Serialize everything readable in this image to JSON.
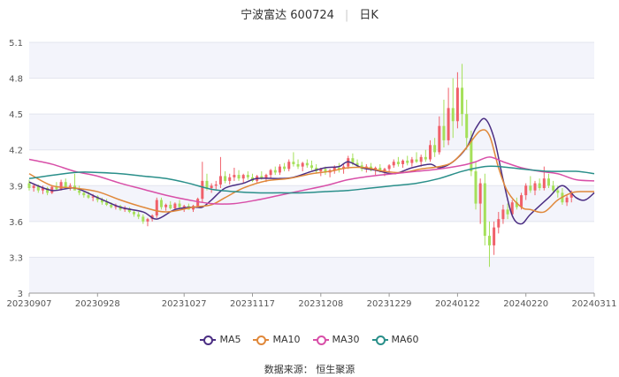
{
  "header": {
    "stock": "宁波富达 600724",
    "period": "日K"
  },
  "source_label": "数据来源： 恒生聚源",
  "chart_data": {
    "type": "candlestick",
    "ylim": [
      3.0,
      5.1
    ],
    "y_ticks": [
      "5.1",
      "4.8",
      "4.5",
      "4.2",
      "3.9",
      "3.6",
      "3.3",
      "3"
    ],
    "y_tick_values": [
      5.1,
      4.8,
      4.5,
      4.2,
      3.9,
      3.6,
      3.3,
      3.0
    ],
    "x_ticks": [
      "20230907",
      "20230928",
      "20231027",
      "20231117",
      "20231208",
      "20231229",
      "20240122",
      "20240220",
      "20240311"
    ],
    "x_tick_index": [
      0,
      15,
      34,
      49,
      64,
      79,
      94,
      109,
      124
    ],
    "n_days": 125,
    "colors": {
      "up": "#f0606a",
      "down": "#a5e05a"
    },
    "legend": [
      {
        "name": "MA5",
        "color": "#4b2e83"
      },
      {
        "name": "MA10",
        "color": "#e0883a"
      },
      {
        "name": "MA30",
        "color": "#d84fa8"
      },
      {
        "name": "MA60",
        "color": "#2a8f8a"
      }
    ],
    "ma_series": {
      "MA5": [
        [
          0,
          3.93
        ],
        [
          5,
          3.86
        ],
        [
          10,
          3.88
        ],
        [
          15,
          3.8
        ],
        [
          20,
          3.72
        ],
        [
          25,
          3.68
        ],
        [
          28,
          3.62
        ],
        [
          32,
          3.7
        ],
        [
          36,
          3.72
        ],
        [
          38,
          3.72
        ],
        [
          40,
          3.78
        ],
        [
          43,
          3.88
        ],
        [
          47,
          3.92
        ],
        [
          50,
          3.96
        ],
        [
          55,
          3.96
        ],
        [
          58,
          3.97
        ],
        [
          62,
          4.02
        ],
        [
          65,
          4.05
        ],
        [
          68,
          4.06
        ],
        [
          70,
          4.1
        ],
        [
          73,
          4.05
        ],
        [
          76,
          4.03
        ],
        [
          80,
          4.0
        ],
        [
          84,
          4.05
        ],
        [
          88,
          4.08
        ],
        [
          90,
          4.05
        ],
        [
          93,
          4.1
        ],
        [
          96,
          4.22
        ],
        [
          98,
          4.38
        ],
        [
          100,
          4.46
        ],
        [
          102,
          4.3
        ],
        [
          104,
          3.95
        ],
        [
          106,
          3.65
        ],
        [
          108,
          3.58
        ],
        [
          110,
          3.66
        ],
        [
          114,
          3.8
        ],
        [
          117,
          3.9
        ],
        [
          120,
          3.8
        ],
        [
          122,
          3.78
        ],
        [
          124,
          3.84
        ]
      ],
      "MA10": [
        [
          0,
          4.0
        ],
        [
          5,
          3.9
        ],
        [
          10,
          3.88
        ],
        [
          15,
          3.85
        ],
        [
          20,
          3.78
        ],
        [
          25,
          3.72
        ],
        [
          30,
          3.68
        ],
        [
          36,
          3.72
        ],
        [
          40,
          3.74
        ],
        [
          43,
          3.8
        ],
        [
          47,
          3.88
        ],
        [
          52,
          3.94
        ],
        [
          57,
          3.96
        ],
        [
          62,
          4.0
        ],
        [
          66,
          4.02
        ],
        [
          70,
          4.05
        ],
        [
          74,
          4.05
        ],
        [
          78,
          4.02
        ],
        [
          82,
          4.01
        ],
        [
          86,
          4.04
        ],
        [
          90,
          4.06
        ],
        [
          93,
          4.1
        ],
        [
          96,
          4.22
        ],
        [
          99,
          4.36
        ],
        [
          101,
          4.32
        ],
        [
          103,
          4.05
        ],
        [
          105,
          3.85
        ],
        [
          108,
          3.72
        ],
        [
          110,
          3.7
        ],
        [
          113,
          3.68
        ],
        [
          116,
          3.78
        ],
        [
          119,
          3.84
        ],
        [
          121,
          3.85
        ],
        [
          124,
          3.85
        ]
      ],
      "MA30": [
        [
          0,
          4.12
        ],
        [
          5,
          4.08
        ],
        [
          10,
          4.02
        ],
        [
          15,
          3.98
        ],
        [
          20,
          3.92
        ],
        [
          25,
          3.87
        ],
        [
          30,
          3.82
        ],
        [
          35,
          3.78
        ],
        [
          40,
          3.75
        ],
        [
          45,
          3.75
        ],
        [
          50,
          3.78
        ],
        [
          55,
          3.82
        ],
        [
          60,
          3.86
        ],
        [
          65,
          3.9
        ],
        [
          70,
          3.95
        ],
        [
          75,
          3.98
        ],
        [
          80,
          4.0
        ],
        [
          85,
          4.02
        ],
        [
          90,
          4.04
        ],
        [
          95,
          4.07
        ],
        [
          98,
          4.1
        ],
        [
          101,
          4.14
        ],
        [
          104,
          4.1
        ],
        [
          108,
          4.05
        ],
        [
          112,
          4.02
        ],
        [
          116,
          4.0
        ],
        [
          120,
          3.95
        ],
        [
          124,
          3.94
        ]
      ],
      "MA60": [
        [
          0,
          3.96
        ],
        [
          10,
          4.01
        ],
        [
          15,
          4.01
        ],
        [
          20,
          4.0
        ],
        [
          25,
          3.98
        ],
        [
          30,
          3.96
        ],
        [
          35,
          3.92
        ],
        [
          40,
          3.87
        ],
        [
          45,
          3.85
        ],
        [
          50,
          3.84
        ],
        [
          55,
          3.84
        ],
        [
          60,
          3.84
        ],
        [
          65,
          3.85
        ],
        [
          70,
          3.86
        ],
        [
          75,
          3.88
        ],
        [
          80,
          3.9
        ],
        [
          85,
          3.92
        ],
        [
          90,
          3.96
        ],
        [
          95,
          4.02
        ],
        [
          100,
          4.06
        ],
        [
          103,
          4.06
        ],
        [
          108,
          4.04
        ],
        [
          114,
          4.02
        ],
        [
          120,
          4.02
        ],
        [
          124,
          4.0
        ]
      ]
    },
    "candles_ohlc": [
      [
        3.92,
        3.95,
        3.86,
        3.88
      ],
      [
        3.88,
        3.92,
        3.85,
        3.9
      ],
      [
        3.9,
        3.91,
        3.84,
        3.86
      ],
      [
        3.86,
        3.9,
        3.83,
        3.88
      ],
      [
        3.88,
        3.89,
        3.82,
        3.84
      ],
      [
        3.84,
        3.9,
        3.83,
        3.89
      ],
      [
        3.89,
        3.93,
        3.86,
        3.87
      ],
      [
        3.87,
        3.95,
        3.86,
        3.93
      ],
      [
        3.93,
        3.96,
        3.88,
        3.89
      ],
      [
        3.89,
        3.92,
        3.86,
        3.9
      ],
      [
        3.9,
        4.0,
        3.88,
        3.86
      ],
      [
        3.86,
        3.9,
        3.82,
        3.84
      ],
      [
        3.84,
        3.86,
        3.8,
        3.82
      ],
      [
        3.82,
        3.85,
        3.79,
        3.8
      ],
      [
        3.8,
        3.83,
        3.77,
        3.81
      ],
      [
        3.81,
        3.82,
        3.76,
        3.78
      ],
      [
        3.78,
        3.8,
        3.74,
        3.76
      ],
      [
        3.76,
        3.79,
        3.73,
        3.74
      ],
      [
        3.74,
        3.76,
        3.71,
        3.72
      ],
      [
        3.72,
        3.75,
        3.7,
        3.73
      ],
      [
        3.73,
        3.74,
        3.69,
        3.7
      ],
      [
        3.7,
        3.73,
        3.68,
        3.71
      ],
      [
        3.71,
        3.72,
        3.67,
        3.68
      ],
      [
        3.68,
        3.7,
        3.64,
        3.66
      ],
      [
        3.66,
        3.68,
        3.62,
        3.64
      ],
      [
        3.64,
        3.66,
        3.58,
        3.6
      ],
      [
        3.6,
        3.63,
        3.56,
        3.62
      ],
      [
        3.62,
        3.66,
        3.6,
        3.65
      ],
      [
        3.65,
        3.8,
        3.63,
        3.78
      ],
      [
        3.78,
        3.8,
        3.7,
        3.72
      ],
      [
        3.72,
        3.75,
        3.69,
        3.74
      ],
      [
        3.74,
        3.77,
        3.7,
        3.71
      ],
      [
        3.71,
        3.76,
        3.69,
        3.75
      ],
      [
        3.75,
        3.78,
        3.71,
        3.72
      ],
      [
        3.72,
        3.74,
        3.68,
        3.73
      ],
      [
        3.73,
        3.75,
        3.7,
        3.7
      ],
      [
        3.7,
        3.74,
        3.68,
        3.73
      ],
      [
        3.73,
        3.8,
        3.72,
        3.79
      ],
      [
        3.79,
        4.1,
        3.76,
        3.94
      ],
      [
        3.94,
        4.0,
        3.86,
        3.88
      ],
      [
        3.88,
        3.92,
        3.84,
        3.9
      ],
      [
        3.9,
        3.94,
        3.87,
        3.91
      ],
      [
        3.91,
        4.14,
        3.88,
        3.98
      ],
      [
        3.98,
        4.02,
        3.92,
        3.94
      ],
      [
        3.94,
        4.0,
        3.91,
        3.97
      ],
      [
        3.97,
        4.05,
        3.94,
        3.99
      ],
      [
        3.99,
        4.03,
        3.94,
        3.96
      ],
      [
        3.96,
        4.0,
        3.92,
        3.99
      ],
      [
        3.99,
        4.02,
        3.95,
        3.97
      ],
      [
        3.97,
        4.0,
        3.93,
        3.94
      ],
      [
        3.94,
        3.99,
        3.92,
        3.98
      ],
      [
        3.98,
        4.02,
        3.95,
        3.96
      ],
      [
        3.96,
        4.0,
        3.93,
        3.99
      ],
      [
        3.99,
        4.04,
        3.96,
        4.03
      ],
      [
        4.03,
        4.06,
        3.99,
        4.01
      ],
      [
        4.01,
        4.08,
        3.99,
        4.06
      ],
      [
        4.06,
        4.09,
        4.02,
        4.04
      ],
      [
        4.04,
        4.12,
        4.02,
        4.1
      ],
      [
        4.1,
        4.18,
        4.06,
        4.08
      ],
      [
        4.08,
        4.12,
        4.04,
        4.06
      ],
      [
        4.06,
        4.1,
        4.02,
        4.09
      ],
      [
        4.09,
        4.12,
        4.05,
        4.07
      ],
      [
        4.07,
        4.11,
        4.03,
        4.05
      ],
      [
        4.05,
        4.08,
        4.0,
        4.02
      ],
      [
        4.02,
        4.05,
        3.98,
        4.04
      ],
      [
        4.04,
        4.06,
        3.99,
        4.01
      ],
      [
        4.01,
        4.04,
        3.97,
        4.03
      ],
      [
        4.03,
        4.07,
        4.0,
        4.05
      ],
      [
        4.05,
        4.09,
        4.01,
        4.04
      ],
      [
        4.04,
        4.08,
        4.0,
        4.06
      ],
      [
        4.06,
        4.15,
        4.04,
        4.13
      ],
      [
        4.13,
        4.17,
        4.07,
        4.09
      ],
      [
        4.09,
        4.12,
        4.05,
        4.07
      ],
      [
        4.07,
        4.1,
        4.02,
        4.04
      ],
      [
        4.04,
        4.08,
        4.01,
        4.06
      ],
      [
        4.06,
        4.09,
        4.02,
        4.03
      ],
      [
        4.03,
        4.06,
        3.99,
        4.05
      ],
      [
        4.05,
        4.08,
        4.01,
        4.02
      ],
      [
        4.02,
        4.05,
        3.98,
        4.04
      ],
      [
        4.04,
        4.08,
        4.02,
        4.07
      ],
      [
        4.07,
        4.12,
        4.05,
        4.1
      ],
      [
        4.1,
        4.14,
        4.06,
        4.08
      ],
      [
        4.08,
        4.12,
        4.05,
        4.11
      ],
      [
        4.11,
        4.15,
        4.07,
        4.09
      ],
      [
        4.09,
        4.14,
        4.06,
        4.12
      ],
      [
        4.12,
        4.18,
        4.09,
        4.1
      ],
      [
        4.1,
        4.16,
        4.06,
        4.14
      ],
      [
        4.14,
        4.2,
        4.1,
        4.12
      ],
      [
        4.12,
        4.28,
        4.1,
        4.24
      ],
      [
        4.24,
        4.3,
        4.14,
        4.18
      ],
      [
        4.18,
        4.48,
        4.16,
        4.4
      ],
      [
        4.4,
        4.62,
        4.22,
        4.28
      ],
      [
        4.28,
        4.72,
        4.24,
        4.55
      ],
      [
        4.55,
        4.8,
        4.3,
        4.44
      ],
      [
        4.44,
        4.85,
        4.38,
        4.72
      ],
      [
        4.72,
        4.92,
        4.4,
        4.5
      ],
      [
        4.5,
        4.62,
        4.2,
        4.3
      ],
      [
        4.3,
        4.36,
        3.98,
        4.02
      ],
      [
        4.02,
        4.1,
        3.7,
        3.75
      ],
      [
        3.75,
        3.96,
        3.58,
        3.92
      ],
      [
        3.92,
        4.0,
        3.4,
        3.48
      ],
      [
        3.48,
        3.6,
        3.22,
        3.4
      ],
      [
        3.4,
        3.6,
        3.32,
        3.55
      ],
      [
        3.55,
        3.68,
        3.5,
        3.62
      ],
      [
        3.62,
        3.74,
        3.58,
        3.7
      ],
      [
        3.7,
        3.75,
        3.62,
        3.66
      ],
      [
        3.66,
        3.78,
        3.64,
        3.76
      ],
      [
        3.76,
        3.8,
        3.7,
        3.72
      ],
      [
        3.72,
        3.84,
        3.7,
        3.82
      ],
      [
        3.82,
        3.92,
        3.78,
        3.9
      ],
      [
        3.9,
        3.98,
        3.84,
        3.86
      ],
      [
        3.86,
        3.94,
        3.82,
        3.92
      ],
      [
        3.92,
        3.96,
        3.86,
        3.88
      ],
      [
        3.88,
        4.06,
        3.86,
        3.96
      ],
      [
        3.96,
        4.0,
        3.88,
        3.9
      ],
      [
        3.9,
        3.94,
        3.84,
        3.86
      ],
      [
        3.86,
        3.9,
        3.8,
        3.84
      ],
      [
        3.84,
        3.88,
        3.74,
        3.76
      ],
      [
        3.76,
        3.82,
        3.73,
        3.8
      ],
      [
        3.8,
        3.86,
        3.76,
        3.84
      ]
    ]
  }
}
